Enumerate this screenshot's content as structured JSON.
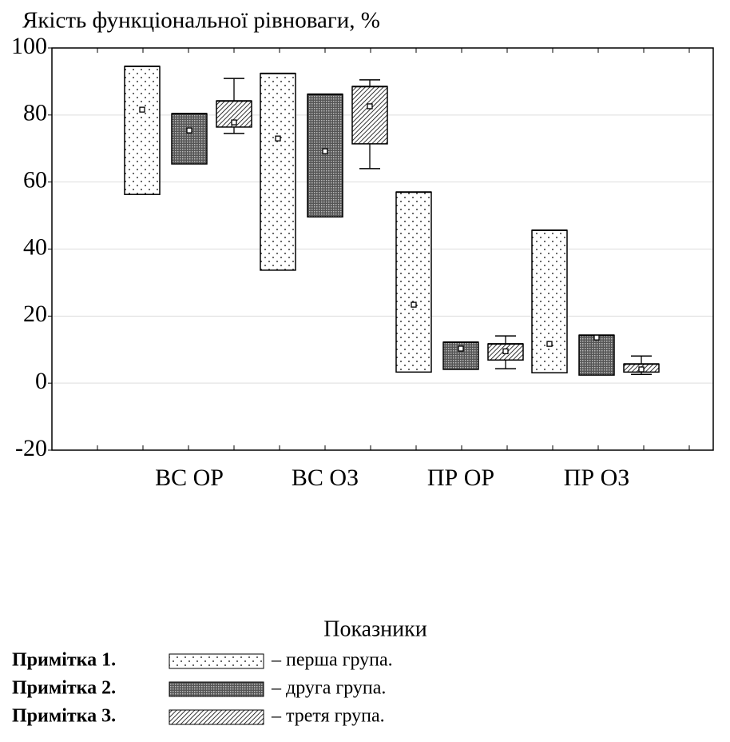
{
  "chart_data": {
    "type": "box",
    "title": "Якість функціональної рівноваги, %",
    "x_label": "Показники",
    "categories": [
      "ВС ОР",
      "ВС ОЗ",
      "ПР ОР",
      "ПР ОЗ"
    ],
    "ylim": [
      -20,
      100
    ],
    "yticks": [
      -20,
      0,
      20,
      40,
      60,
      80,
      100
    ],
    "grid": true,
    "series": [
      {
        "name": "– перша група.",
        "color": "#ffffff",
        "pattern": "dots",
        "values": [
          81.6,
          73.0,
          23.4,
          11.7
        ],
        "low": [
          56.3,
          33.7,
          3.3,
          3.1
        ],
        "high": [
          94.5,
          92.4,
          57.0,
          45.6
        ],
        "whisker_low": [
          null,
          null,
          null,
          null
        ],
        "whisker_high": [
          null,
          null,
          null,
          null
        ]
      },
      {
        "name": "– друга група.",
        "color": "#7a7a7a",
        "pattern": "grid",
        "values": [
          75.4,
          69.2,
          10.3,
          13.6
        ],
        "low": [
          65.4,
          49.6,
          4.1,
          2.4
        ],
        "high": [
          80.4,
          86.2,
          12.2,
          14.3
        ],
        "whisker_low": [
          null,
          null,
          null,
          null
        ],
        "whisker_high": [
          null,
          null,
          null,
          null
        ]
      },
      {
        "name": "– третя група.",
        "color": "#ffffff",
        "pattern": "hatch",
        "values": [
          77.8,
          82.6,
          9.5,
          4.1
        ],
        "low": [
          76.4,
          71.4,
          6.9,
          3.3
        ],
        "high": [
          84.2,
          88.5,
          11.7,
          5.7
        ],
        "whisker_low": [
          74.5,
          64.0,
          4.3,
          2.6
        ],
        "whisker_high": [
          90.9,
          90.5,
          14.1,
          8.1
        ]
      }
    ],
    "notes": [
      "Примітка 1.",
      "Примітка 2.",
      "Примітка 3."
    ]
  }
}
